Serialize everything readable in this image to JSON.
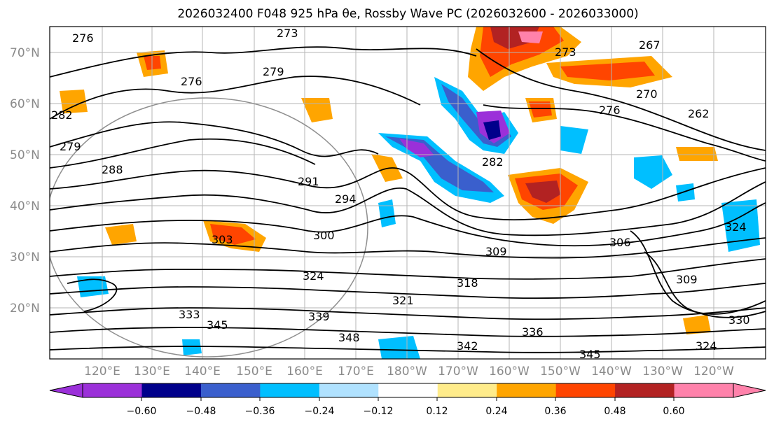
{
  "title": "2026032400 F048 925 hPa θe, Rossby Wave PC (2026032600 - 2026033000)",
  "lat_labels": [
    "70°N",
    "60°N",
    "50°N",
    "40°N",
    "30°N",
    "20°N"
  ],
  "lon_labels": [
    "120°E",
    "130°E",
    "140°E",
    "150°E",
    "160°E",
    "170°E",
    "180°W",
    "170°W",
    "160°W",
    "150°W",
    "140°W",
    "130°W",
    "120°W"
  ],
  "contour_labels": [
    "273",
    "276",
    "279",
    "282",
    "288",
    "291",
    "294",
    "300",
    "303",
    "306",
    "309",
    "318",
    "321",
    "324",
    "330",
    "333",
    "336",
    "339",
    "342",
    "345",
    "348",
    "270",
    "273",
    "267",
    "262",
    "276",
    "276",
    "279",
    "282",
    "324",
    "345",
    "309",
    "324"
  ],
  "colorbar": {
    "ticks": [
      "−0.60",
      "−0.48",
      "−0.36",
      "−0.24",
      "−0.12",
      "0.12",
      "0.24",
      "0.36",
      "0.48",
      "0.60"
    ],
    "colors": [
      "#9b30d9",
      "#00008b",
      "#3a5fcd",
      "#00bfff",
      "#b0e2ff",
      "#ffffff",
      "#ffec8b",
      "#ffa500",
      "#ff4500",
      "#b22222",
      "#ff82ab",
      "#ff82ab"
    ]
  }
}
